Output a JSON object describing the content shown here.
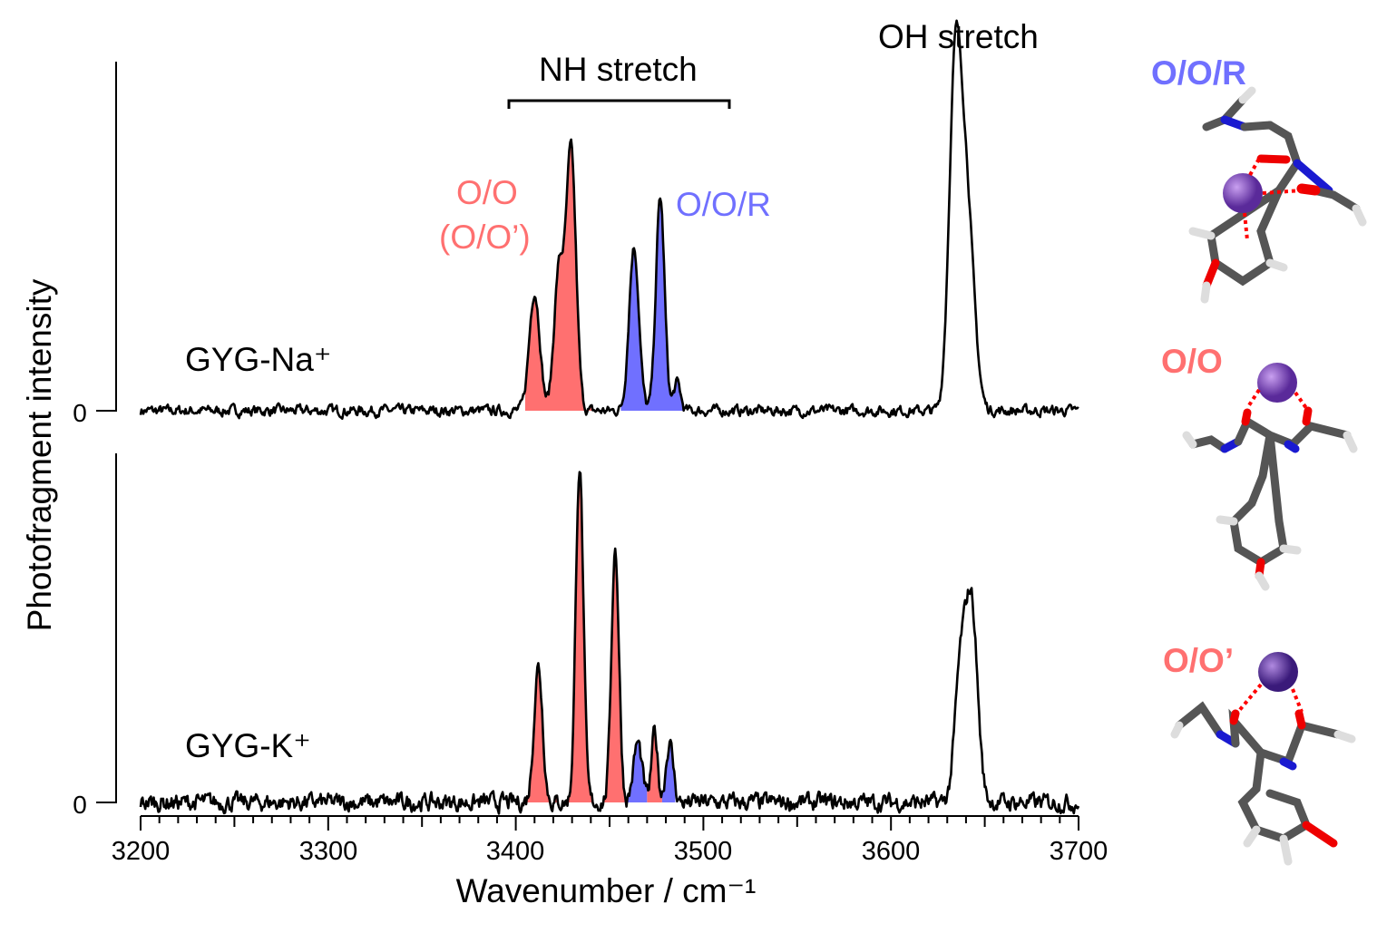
{
  "chart_data": [
    {
      "type": "line",
      "panel": "top",
      "series_label": "GYG-Na⁺",
      "x_range": [
        3200,
        3700
      ],
      "y_range": [
        0,
        1
      ],
      "y_zero_label": "0",
      "peaks": [
        {
          "x": 3410,
          "y": 0.34,
          "width": 2.8,
          "group": "O/O"
        },
        {
          "x": 3423,
          "y": 0.4,
          "width": 2.6,
          "group": "O/O"
        },
        {
          "x": 3429.5,
          "y": 0.74,
          "width": 2.6,
          "group": "O/O"
        },
        {
          "x": 3463,
          "y": 0.47,
          "width": 2.6,
          "group": "O/O/R"
        },
        {
          "x": 3477,
          "y": 0.61,
          "width": 2.3,
          "group": "O/O/R"
        },
        {
          "x": 3486,
          "y": 0.08,
          "width": 1.8,
          "group": "O/O/R"
        },
        {
          "x": 3634,
          "y": 0.86,
          "width": 3.2,
          "group": "OH"
        },
        {
          "x": 3640,
          "y": 0.62,
          "width": 4.0,
          "group": "OH"
        }
      ],
      "fills": [
        {
          "from": 3405,
          "to": 3446,
          "color": "#ff7070"
        },
        {
          "from": 3456,
          "to": 3490,
          "color": "#7070ff"
        }
      ]
    },
    {
      "type": "line",
      "panel": "bottom",
      "series_label": "GYG-K⁺",
      "x_range": [
        3200,
        3700
      ],
      "y_range": [
        0,
        1
      ],
      "y_zero_label": "0",
      "peaks": [
        {
          "x": 3412,
          "y": 0.39,
          "width": 2.3
        },
        {
          "x": 3434,
          "y": 0.97,
          "width": 2.0
        },
        {
          "x": 3453,
          "y": 0.73,
          "width": 2.0
        },
        {
          "x": 3465,
          "y": 0.17,
          "width": 2.3
        },
        {
          "x": 3474,
          "y": 0.2,
          "width": 1.6
        },
        {
          "x": 3482,
          "y": 0.17,
          "width": 2.0
        },
        {
          "x": 3637,
          "y": 0.36,
          "width": 3.0
        },
        {
          "x": 3643,
          "y": 0.55,
          "width": 3.2
        }
      ],
      "fills": [
        {
          "from": 3405,
          "to": 3458,
          "color": "#ff7070"
        },
        {
          "from": 3458,
          "to": 3470,
          "color": "#7070ff"
        },
        {
          "from": 3470,
          "to": 3478,
          "color": "#ff7070"
        },
        {
          "from": 3478,
          "to": 3485,
          "color": "#7070ff"
        }
      ]
    }
  ],
  "axes": {
    "xlabel": "Wavenumber / cm⁻¹",
    "ylabel": "Photofragment intensity",
    "x_ticks": [
      "3200",
      "3300",
      "3400",
      "3500",
      "3600",
      "3700"
    ]
  },
  "annotations": {
    "nh_stretch": "NH stretch",
    "oh_stretch": "OH stretch",
    "oo": "O/O",
    "oo_prime": "(O/O’)",
    "oor": "O/O/R",
    "na_label": "GYG-Na⁺",
    "k_label": "GYG-K⁺"
  },
  "structures": [
    {
      "label": "O/O/R",
      "color": "#7070ff"
    },
    {
      "label": "O/O",
      "color": "#ff7070"
    },
    {
      "label": "O/O’",
      "color": "#ff7070"
    }
  ],
  "colors": {
    "red": "#ff7070",
    "blue": "#7070ff",
    "line": "#000000"
  }
}
